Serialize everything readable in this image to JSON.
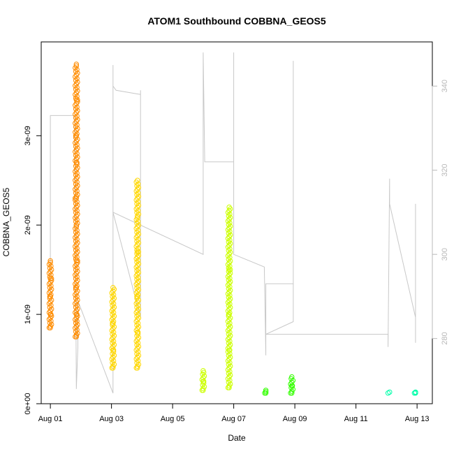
{
  "chart_data": {
    "type": "scatter",
    "title": "ATOM1 Southbound COBBNA_GEOS5",
    "xlabel": "Date",
    "ylabel": "COBBNA_GEOS5",
    "x_ticks": [
      "Aug 01",
      "Aug 03",
      "Aug 05",
      "Aug 07",
      "Aug 09",
      "Aug 11",
      "Aug 13"
    ],
    "y_ticks": [
      "0e+00",
      "1e-09",
      "2e-09",
      "3e-09"
    ],
    "y2_ticks": [
      "280",
      "300",
      "320",
      "340"
    ],
    "xlim": [
      0.7,
      13.5
    ],
    "ylim": [
      0,
      4.05e-09
    ],
    "y2lim": [
      264.5,
      350.5
    ],
    "grid": false,
    "series": [
      {
        "color": "#ff8c00",
        "points": [
          [
            1.0,
            8.5e-10
          ],
          [
            1.0,
            1e-09
          ],
          [
            1.0,
            1.2e-09
          ],
          [
            1.0,
            1.4e-09
          ],
          [
            1.0,
            1.6e-09
          ],
          [
            1.85,
            7.5e-10
          ],
          [
            1.85,
            1e-09
          ],
          [
            1.85,
            1.3e-09
          ],
          [
            1.85,
            1.6e-09
          ],
          [
            1.85,
            2e-09
          ],
          [
            1.85,
            2.3e-09
          ],
          [
            1.85,
            2.7e-09
          ],
          [
            1.85,
            3e-09
          ],
          [
            1.85,
            3.4e-09
          ],
          [
            1.85,
            3.8e-09
          ]
        ]
      },
      {
        "color": "#ffd700",
        "points": [
          [
            3.05,
            4e-10
          ],
          [
            3.05,
            6e-10
          ],
          [
            3.05,
            9e-10
          ],
          [
            3.05,
            1.3e-09
          ],
          [
            3.85,
            4e-10
          ],
          [
            3.85,
            8e-10
          ],
          [
            3.85,
            1.2e-09
          ],
          [
            3.85,
            1.7e-09
          ],
          [
            3.85,
            2.1e-09
          ],
          [
            3.85,
            2.5e-09
          ]
        ]
      },
      {
        "color": "#ccff00",
        "points": [
          [
            6.0,
            1.5e-10
          ],
          [
            6.0,
            2.5e-10
          ],
          [
            6.0,
            3.7e-10
          ],
          [
            6.85,
            1.8e-10
          ],
          [
            6.85,
            6e-10
          ],
          [
            6.85,
            1e-09
          ],
          [
            6.85,
            1.5e-09
          ],
          [
            6.85,
            2.2e-09
          ]
        ]
      },
      {
        "color": "#33ff00",
        "points": [
          [
            8.05,
            1.2e-10
          ],
          [
            8.05,
            1.5e-10
          ],
          [
            8.9,
            1.2e-10
          ],
          [
            8.9,
            2e-10
          ],
          [
            8.9,
            3e-10
          ]
        ]
      },
      {
        "color": "#00ffaa",
        "points": [
          [
            12.05,
            1.2e-10
          ],
          [
            12.1,
            1.3e-10
          ],
          [
            12.95,
            1.2e-10
          ],
          [
            12.95,
            1.3e-10
          ]
        ]
      }
    ],
    "secondary_line": {
      "color": "#c8c8c8",
      "points": [
        [
          1.0,
          291
        ],
        [
          1.0,
          333
        ],
        [
          1.35,
          333
        ],
        [
          1.8,
          333
        ],
        [
          1.85,
          268
        ],
        [
          1.9,
          278
        ],
        [
          1.9,
          289
        ],
        [
          3.05,
          267
        ],
        [
          3.05,
          345
        ],
        [
          3.05,
          340
        ],
        [
          3.15,
          339
        ],
        [
          3.95,
          338
        ],
        [
          3.95,
          339
        ],
        [
          3.95,
          285
        ],
        [
          3.05,
          310
        ],
        [
          6.0,
          300
        ],
        [
          6.0,
          348
        ],
        [
          6.05,
          322
        ],
        [
          7.0,
          322
        ],
        [
          7.0,
          348
        ],
        [
          7.0,
          300
        ],
        [
          8.0,
          297
        ],
        [
          8.05,
          276
        ],
        [
          8.05,
          293
        ],
        [
          8.95,
          293
        ],
        [
          8.95,
          346
        ],
        [
          8.95,
          284
        ],
        [
          8.05,
          281
        ],
        [
          12.05,
          281
        ],
        [
          12.05,
          278
        ],
        [
          12.1,
          318
        ],
        [
          12.1,
          312
        ],
        [
          12.95,
          285
        ],
        [
          12.95,
          312
        ],
        [
          12.95,
          279
        ]
      ]
    },
    "annotations": []
  }
}
